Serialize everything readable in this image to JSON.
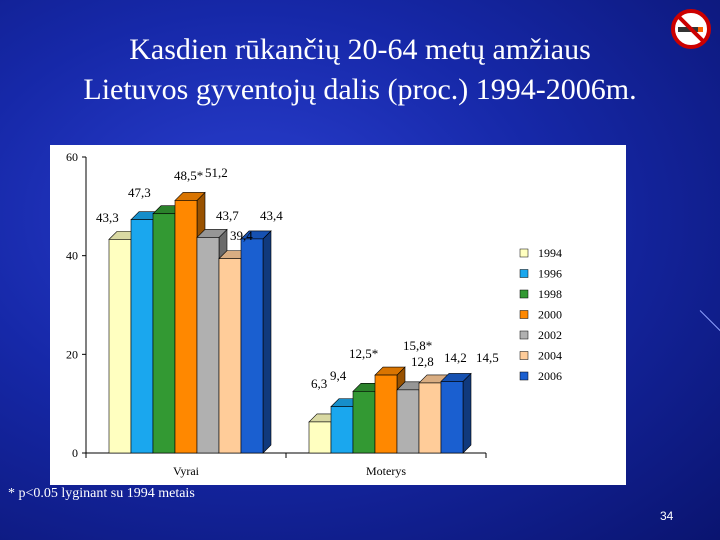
{
  "slide": {
    "title_line1": "Kasdien rūkančių 20-64 metų amžiaus",
    "title_line2": "Lietuvos gyventojų dalis (proc.) 1994-2006m.",
    "footnote": "* p<0.05 lyginant su 1994 metais",
    "page_number": "34",
    "icon": "no-smoking-icon"
  },
  "chart_data": {
    "type": "bar",
    "title": "",
    "xlabel": "",
    "ylabel": "",
    "ylim": [
      0,
      60
    ],
    "yticks": [
      0,
      20,
      40,
      60
    ],
    "categories": [
      "Vyrai",
      "Moterys"
    ],
    "legend_position": "right",
    "series": [
      {
        "name": "1994",
        "color": "#ffffc0",
        "values": [
          43.3,
          6.3
        ],
        "labels": [
          "43,3",
          "6,3"
        ]
      },
      {
        "name": "1996",
        "color": "#1aa7ee",
        "values": [
          47.3,
          9.4
        ],
        "labels": [
          "47,3",
          "9,4"
        ]
      },
      {
        "name": "1998",
        "color": "#339933",
        "values": [
          48.5,
          12.5
        ],
        "labels": [
          "48,5*",
          "12,5*"
        ]
      },
      {
        "name": "2000",
        "color": "#ff8800",
        "values": [
          51.2,
          15.8
        ],
        "labels": [
          "51,2",
          "15,8*"
        ]
      },
      {
        "name": "2002",
        "color": "#b0b0b0",
        "values": [
          43.7,
          12.8
        ],
        "labels": [
          "43,7",
          "12,8"
        ]
      },
      {
        "name": "2004",
        "color": "#ffcc99",
        "values": [
          39.4,
          14.2
        ],
        "labels": [
          "39,4",
          "14,2"
        ]
      },
      {
        "name": "2006",
        "color": "#1a5fd0",
        "values": [
          43.4,
          14.5
        ],
        "labels": [
          "43,4",
          "14,5"
        ]
      }
    ]
  }
}
